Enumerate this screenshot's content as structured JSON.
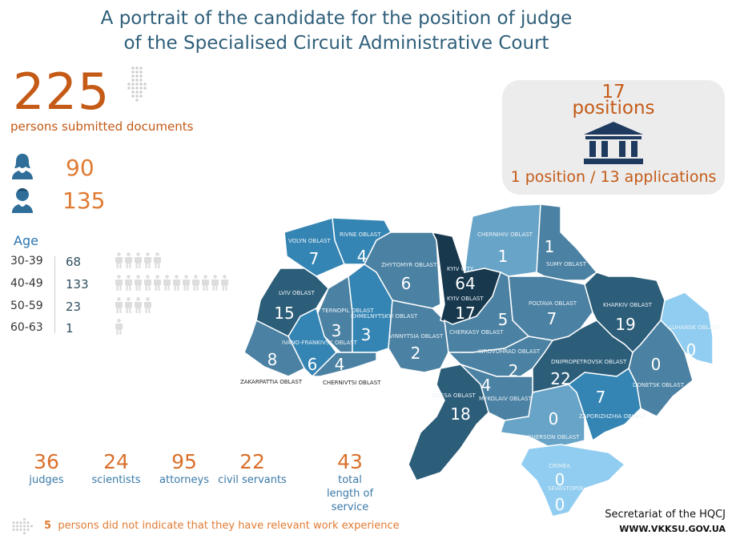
{
  "title": {
    "line1": "A portrait of the candidate for the position of judge",
    "line2": "of the Specialised Circuit Administrative Court"
  },
  "total": {
    "value": "225",
    "label": "persons submitted documents"
  },
  "gender": {
    "female": "90",
    "male": "135"
  },
  "age": {
    "title": "Age",
    "rows": [
      {
        "range": "30-39",
        "value": "68",
        "icons": 5
      },
      {
        "range": "40-49",
        "value": "133",
        "icons": 12
      },
      {
        "range": "50-59",
        "value": "23",
        "icons": 4
      },
      {
        "range": "60-63",
        "value": "1",
        "icons": 1
      }
    ]
  },
  "positions": {
    "count": "17",
    "label": "positions",
    "ratio": "1 position / 13 applications",
    "icon": "courthouse-icon"
  },
  "colors": {
    "accent": "#c45a16",
    "darkest": "#18384d",
    "dark": "#2c5d79",
    "mid": "#4b81a2",
    "bright": "#3585b4",
    "light": "#68a4c7",
    "lightest": "#90cdf0"
  },
  "regions": [
    {
      "name": "VOLYN OBLAST",
      "value": "7",
      "shade": "bright"
    },
    {
      "name": "RIVNE OBLAST",
      "value": "4",
      "shade": "bright"
    },
    {
      "name": "ZHYTOMYR OBLAST",
      "value": "6",
      "shade": "mid"
    },
    {
      "name": "LVIV OBLAST",
      "value": "15",
      "shade": "dark"
    },
    {
      "name": "TERNOPIL OBLAST",
      "value": "3",
      "shade": "mid"
    },
    {
      "name": "KHMELNYTSKYI OBLAST",
      "value": "3",
      "shade": "bright"
    },
    {
      "name": "IVANO-FRANKIVSK OBLAST",
      "value": "6",
      "shade": "bright"
    },
    {
      "name": "ZAKARPATTIA OBLAST",
      "value": "8",
      "shade": "mid"
    },
    {
      "name": "CHERNIVTSI OBLAST",
      "value": "4",
      "shade": "mid"
    },
    {
      "name": "VINNYTSIA OBLAST",
      "value": "2",
      "shade": "mid"
    },
    {
      "name": "KYIV CITY",
      "value": "64",
      "shade": "darkest"
    },
    {
      "name": "KYIV OBLAST",
      "value": "17",
      "shade": "darkest"
    },
    {
      "name": "CHERNIHIV OBLAST",
      "value": "1",
      "shade": "light"
    },
    {
      "name": "SUMY OBLAST",
      "value": "1",
      "shade": "mid"
    },
    {
      "name": "POLTAVA OBLAST",
      "value": "7",
      "shade": "mid"
    },
    {
      "name": "CHERKASY OBLAST",
      "value": "5",
      "shade": "mid"
    },
    {
      "name": "KHARKIV OBLAST",
      "value": "19",
      "shade": "dark"
    },
    {
      "name": "LUHANSK OBLAST",
      "value": "0",
      "shade": "lightest"
    },
    {
      "name": "DONETSK OBLAST",
      "value": "0",
      "shade": "mid"
    },
    {
      "name": "DNIPROPETROVSK OBLAST",
      "value": "22",
      "shade": "dark"
    },
    {
      "name": "KIROVOHRAD OBLAST",
      "value": "2",
      "shade": "mid"
    },
    {
      "name": "MYKOLAIV OBLAST",
      "value": "4",
      "shade": "mid"
    },
    {
      "name": "ODESA OBLAST",
      "value": "18",
      "shade": "dark"
    },
    {
      "name": "KHERSON OBLAST",
      "value": "0",
      "shade": "light"
    },
    {
      "name": "ZAPORIZHZHIA OBLAST",
      "value": "7",
      "shade": "bright"
    },
    {
      "name": "CRIMEA",
      "value": "0",
      "shade": "lightest"
    },
    {
      "name": "SEVASTOPOL",
      "value": "0",
      "shade": "lightest"
    }
  ],
  "professions": [
    {
      "value": "36",
      "label": "judges"
    },
    {
      "value": "24",
      "label": "scientists"
    },
    {
      "value": "95",
      "label": "attorneys"
    },
    {
      "value": "22",
      "label": "civil servants"
    },
    {
      "value": "43",
      "label": "total length of service"
    }
  ],
  "footnote": {
    "count": "5",
    "text": "persons did not indicate that they have relevant work experience"
  },
  "source": {
    "line1": "Secretariat of the HQCJ",
    "line2": "WWW.VKKSU.GOV.UA"
  }
}
